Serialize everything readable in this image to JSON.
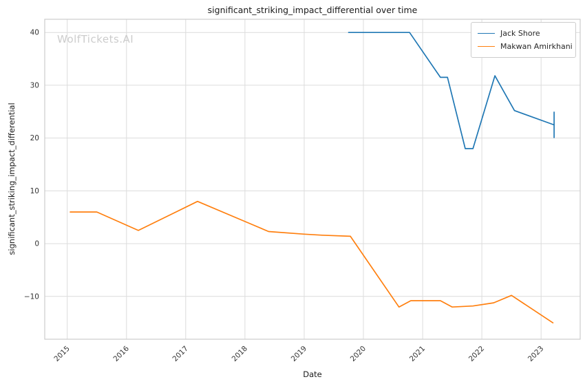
{
  "watermark": "WolfTickets.AI",
  "chart_data": {
    "type": "line",
    "title": "significant_striking_impact_differential over time",
    "xlabel": "Date",
    "ylabel": "significant_striking_impact_differential",
    "x_ticks": [
      2015,
      2016,
      2017,
      2018,
      2019,
      2020,
      2021,
      2022,
      2023
    ],
    "y_ticks": [
      -10,
      0,
      10,
      20,
      30,
      40
    ],
    "xlim": [
      2014.62,
      2023.66
    ],
    "ylim": [
      -18.1,
      42.5
    ],
    "grid": true,
    "legend_position": "upper right",
    "series": [
      {
        "name": "Jack Shore",
        "color": "#1f77b4",
        "x": [
          2019.75,
          2020.78,
          2021.3,
          2021.42,
          2021.72,
          2021.85,
          2022.22,
          2022.55,
          2023.22
        ],
        "y": [
          40,
          40,
          31.5,
          31.5,
          18,
          18,
          31.8,
          25.2,
          22.5
        ],
        "end_cap": {
          "x": 2023.22,
          "y_low": 20.0,
          "y_high": 25.0
        }
      },
      {
        "name": "Makwan Amirkhani",
        "color": "#ff7f0e",
        "x": [
          2015.05,
          2015.5,
          2016.2,
          2017.2,
          2018.0,
          2018.4,
          2019.0,
          2019.3,
          2019.78,
          2020.6,
          2020.8,
          2021.3,
          2021.5,
          2021.85,
          2022.2,
          2022.5,
          2023.2
        ],
        "y": [
          6,
          6,
          2.5,
          8,
          4.2,
          2.3,
          1.8,
          1.6,
          1.4,
          -12,
          -10.8,
          -10.8,
          -12,
          -11.8,
          -11.2,
          -9.8,
          -15
        ]
      }
    ]
  }
}
